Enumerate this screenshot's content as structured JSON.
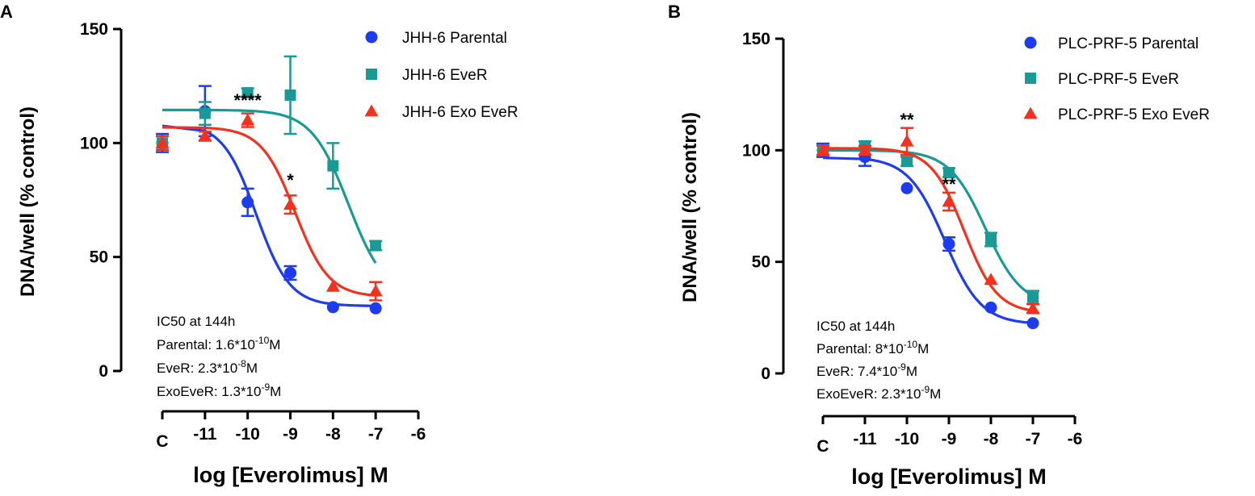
{
  "chart_data": [
    {
      "panel": "A",
      "type": "scatter",
      "xlabel": "log [Everolimus] M",
      "ylabel": "DNA/well (% control)",
      "ylim": [
        0,
        150
      ],
      "yticks": [
        "0",
        "50",
        "100",
        "150"
      ],
      "xticks": [
        "C",
        "-11",
        "-10",
        "-9",
        "-8",
        "-7",
        "-6"
      ],
      "colors": {
        "parental": "#1d3cf0",
        "ever": "#1a9a96",
        "exo": "#f2321e"
      },
      "series": [
        {
          "name": "JHH-6 Parental",
          "marker": "circle",
          "color": "#1d3cf0",
          "points": [
            {
              "x": "C",
              "y": 100,
              "err": 4
            },
            {
              "x": -11,
              "y": 114,
              "err": 11
            },
            {
              "x": -10,
              "y": 74,
              "err": 6
            },
            {
              "x": -9,
              "y": 43,
              "err": 3
            },
            {
              "x": -8,
              "y": 28,
              "err": 0
            },
            {
              "x": -7,
              "y": 27.5,
              "err": 0
            }
          ],
          "fit": {
            "top": 109,
            "bottom": 28.5,
            "logIC50": -9.8,
            "hill": 1.1
          }
        },
        {
          "name": "JHH-6 EveR",
          "marker": "square",
          "color": "#1a9a96",
          "points": [
            {
              "x": "C",
              "y": 100,
              "err": 3
            },
            {
              "x": -11,
              "y": 113,
              "err": 5
            },
            {
              "x": -10,
              "y": 122,
              "err": 2
            },
            {
              "x": -9,
              "y": 121,
              "err": 17
            },
            {
              "x": -8,
              "y": 90,
              "err": 10
            },
            {
              "x": -7,
              "y": 55,
              "err": 2
            }
          ],
          "fit": {
            "top": 114.5,
            "bottom": 32,
            "logIC50": -7.64,
            "hill": 1.0
          }
        },
        {
          "name": "JHH-6 Exo EveR",
          "marker": "triangle",
          "color": "#f2321e",
          "points": [
            {
              "x": "C",
              "y": 100,
              "err": 3
            },
            {
              "x": -11,
              "y": 103,
              "err": 2
            },
            {
              "x": -10,
              "y": 110,
              "err": 3
            },
            {
              "x": -9,
              "y": 73,
              "err": 4
            },
            {
              "x": -8,
              "y": 37,
              "err": 0
            },
            {
              "x": -7,
              "y": 35,
              "err": 4
            }
          ],
          "fit": {
            "top": 107,
            "bottom": 32.5,
            "logIC50": -8.89,
            "hill": 1.1
          }
        }
      ],
      "significance": [
        {
          "label": "****",
          "x": -10,
          "y": 116
        },
        {
          "label": "*",
          "x": -9,
          "y": 81
        }
      ],
      "annotation": {
        "title": "IC50 at 144h",
        "lines": [
          {
            "label": "Parental: 1.6*10",
            "exp": "-10",
            "unit": "M"
          },
          {
            "label": "EveR: 2.3*10",
            "exp": "-8",
            "unit": "M"
          },
          {
            "label": "ExoEveR: 1.3*10",
            "exp": "-9",
            "unit": "M"
          }
        ]
      }
    },
    {
      "panel": "B",
      "type": "scatter",
      "xlabel": "log [Everolimus] M",
      "ylabel": "DNA/well (% control)",
      "ylim": [
        0,
        150
      ],
      "yticks": [
        "0",
        "50",
        "100",
        "150"
      ],
      "xticks": [
        "C",
        "-11",
        "-10",
        "-9",
        "-8",
        "-7",
        "-6"
      ],
      "colors": {
        "parental": "#1d3cf0",
        "ever": "#1a9a96",
        "exo": "#f2321e"
      },
      "series": [
        {
          "name": "PLC-PRF-5 Parental",
          "marker": "circle",
          "color": "#1d3cf0",
          "points": [
            {
              "x": "C",
              "y": 100,
              "err": 3
            },
            {
              "x": -11,
              "y": 97,
              "err": 4
            },
            {
              "x": -10,
              "y": 83,
              "err": 0
            },
            {
              "x": -9,
              "y": 58,
              "err": 3
            },
            {
              "x": -8,
              "y": 29.5,
              "err": 0
            },
            {
              "x": -7,
              "y": 22.5,
              "err": 0
            }
          ],
          "fit": {
            "top": 97,
            "bottom": 22,
            "logIC50": -9.1,
            "hill": 1.0
          }
        },
        {
          "name": "PLC-PRF-5 EveR",
          "marker": "square",
          "color": "#1a9a96",
          "points": [
            {
              "x": "C",
              "y": 100,
              "err": 2
            },
            {
              "x": -11,
              "y": 102,
              "err": 2
            },
            {
              "x": -10,
              "y": 95,
              "err": 2
            },
            {
              "x": -9,
              "y": 90,
              "err": 2
            },
            {
              "x": -8,
              "y": 60,
              "err": 3
            },
            {
              "x": -7,
              "y": 34,
              "err": 3
            }
          ],
          "fit": {
            "top": 100,
            "bottom": 30,
            "logIC50": -8.13,
            "hill": 1.0
          }
        },
        {
          "name": "PLC-PRF-5 Exo EveR",
          "marker": "triangle",
          "color": "#f2321e",
          "points": [
            {
              "x": "C",
              "y": 100,
              "err": 2
            },
            {
              "x": -11,
              "y": 100,
              "err": 2
            },
            {
              "x": -10,
              "y": 104,
              "err": 6
            },
            {
              "x": -9,
              "y": 77,
              "err": 4
            },
            {
              "x": -8,
              "y": 42,
              "err": 0
            },
            {
              "x": -7,
              "y": 29,
              "err": 2
            }
          ],
          "fit": {
            "top": 101,
            "bottom": 27,
            "logIC50": -8.64,
            "hill": 1.1
          }
        }
      ],
      "significance": [
        {
          "label": "**",
          "x": -10,
          "y": 111
        },
        {
          "label": "**",
          "x": -9,
          "y": 82
        }
      ],
      "annotation": {
        "title": "IC50 at 144h",
        "lines": [
          {
            "label": "Parental: 8*10",
            "exp": "-10",
            "unit": "M"
          },
          {
            "label": "EveR: 7.4*10",
            "exp": "-9",
            "unit": "M"
          },
          {
            "label": "ExoEveR: 2.3*10",
            "exp": "-9",
            "unit": "M"
          }
        ]
      }
    }
  ]
}
